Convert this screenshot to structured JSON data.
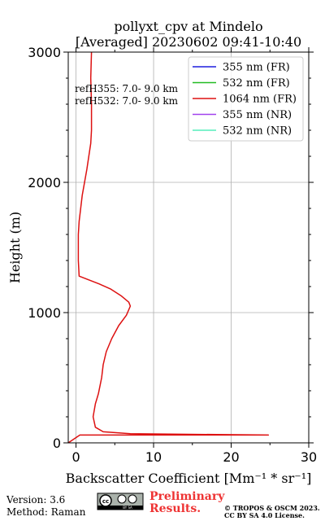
{
  "chart_data": {
    "type": "line",
    "title": [
      "pollyxt_cpv at Mindelo",
      "[Averaged] 20230602 09:41-10:40"
    ],
    "xlabel": "Backscatter Coefficient [Mm⁻¹ * sr⁻¹]",
    "ylabel": "Height (m)",
    "xlim": [
      -1,
      30
    ],
    "ylim": [
      0,
      3000
    ],
    "xticks": [
      0,
      10,
      20,
      30
    ],
    "yticks": [
      0,
      1000,
      2000,
      3000
    ],
    "grid": true,
    "legend_position": "top-right",
    "annotations": [
      "refH355:  7.0- 9.0 km",
      "refH532:  7.0- 9.0 km"
    ],
    "series": [
      {
        "name": "355 nm (FR)",
        "color": "#1f1fdd",
        "x": [],
        "y": []
      },
      {
        "name": "532 nm (FR)",
        "color": "#22bb22",
        "x": [],
        "y": []
      },
      {
        "name": "1064 nm (FR)",
        "color": "#dd1111",
        "x": [
          -1.0,
          0.5,
          24.8,
          7.0,
          3.5,
          2.5,
          2.2,
          2.5,
          2.8,
          2.9,
          3.3,
          3.5,
          3.9,
          4.6,
          5.5,
          6.5,
          7.0,
          6.8,
          5.8,
          4.5,
          3.0,
          0.4,
          0.3,
          0.3,
          0.4,
          0.8,
          1.4,
          1.9,
          2.0,
          2.0,
          1.9,
          2.0
        ],
        "y": [
          0,
          60,
          60,
          70,
          85,
          120,
          200,
          300,
          360,
          380,
          500,
          600,
          700,
          800,
          900,
          980,
          1050,
          1080,
          1130,
          1180,
          1220,
          1280,
          1400,
          1600,
          1700,
          1900,
          2100,
          2300,
          2400,
          2600,
          2800,
          3000
        ]
      },
      {
        "name": "355 nm (NR)",
        "color": "#a142ee",
        "x": [],
        "y": []
      },
      {
        "name": "532 nm (NR)",
        "color": "#55eebb",
        "x": [],
        "y": []
      }
    ]
  },
  "footer": {
    "version": "Version: 3.6",
    "method": "Method: Raman",
    "license_badge_text": "BY SA",
    "preliminary_line1": "Preliminary",
    "preliminary_line2": "Results.",
    "copyright_line1": "© TROPOS & OSCM 2023.",
    "copyright_line2": "CC BY SA 4.0 License."
  }
}
